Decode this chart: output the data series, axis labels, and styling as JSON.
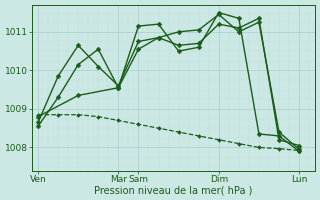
{
  "bg_color": "#cce8e4",
  "grid_color_major": "#aacccc",
  "grid_color_minor": "#bbddda",
  "line_color": "#1a5c1a",
  "marker_color": "#1a5c1a",
  "xlabel": "Pression niveau de la mer( hPa )",
  "xlabel_color": "#1a5c1a",
  "yticks": [
    1008,
    1009,
    1010,
    1011
  ],
  "ylim": [
    1007.4,
    1011.7
  ],
  "xtick_labels": [
    "Ven",
    "Mar",
    "Sam",
    "Dim",
    "Lun"
  ],
  "xtick_positions": [
    0,
    4,
    5,
    9,
    13
  ],
  "xlim": [
    -0.3,
    13.8
  ],
  "series": [
    {
      "x": [
        0,
        1,
        2,
        3,
        4,
        5,
        6,
        7,
        8,
        9,
        10,
        11,
        12,
        13
      ],
      "y": [
        1008.55,
        1009.3,
        1010.15,
        1010.55,
        1009.55,
        1011.15,
        1011.2,
        1010.5,
        1010.6,
        1011.5,
        1011.35,
        1008.35,
        1008.3,
        1007.9
      ],
      "linestyle": "-",
      "markersize": 2.5,
      "linewidth": 1.0
    },
    {
      "x": [
        0,
        1,
        2,
        3,
        4,
        5,
        6,
        7,
        8,
        9,
        10,
        11,
        12,
        13
      ],
      "y": [
        1008.65,
        1009.85,
        1010.65,
        1010.1,
        1009.6,
        1010.75,
        1010.85,
        1010.65,
        1010.7,
        1011.2,
        1011.1,
        1011.35,
        1008.2,
        1008.05
      ],
      "linestyle": "-",
      "markersize": 2.5,
      "linewidth": 1.0
    },
    {
      "x": [
        0,
        2,
        4,
        5,
        6,
        7,
        8,
        9,
        10,
        11,
        12,
        13
      ],
      "y": [
        1008.8,
        1009.35,
        1009.55,
        1010.55,
        1010.85,
        1011.0,
        1011.05,
        1011.45,
        1011.0,
        1011.25,
        1008.4,
        1007.95
      ],
      "linestyle": "-",
      "markersize": 2.5,
      "linewidth": 1.0
    },
    {
      "x": [
        0,
        1,
        2,
        3,
        4,
        5,
        6,
        7,
        8,
        9,
        10,
        11,
        12,
        13
      ],
      "y": [
        1008.85,
        1008.85,
        1008.85,
        1008.8,
        1008.7,
        1008.6,
        1008.5,
        1008.4,
        1008.3,
        1008.2,
        1008.1,
        1008.0,
        1007.97,
        1007.92
      ],
      "linestyle": "--",
      "markersize": 2.0,
      "linewidth": 0.9
    }
  ]
}
